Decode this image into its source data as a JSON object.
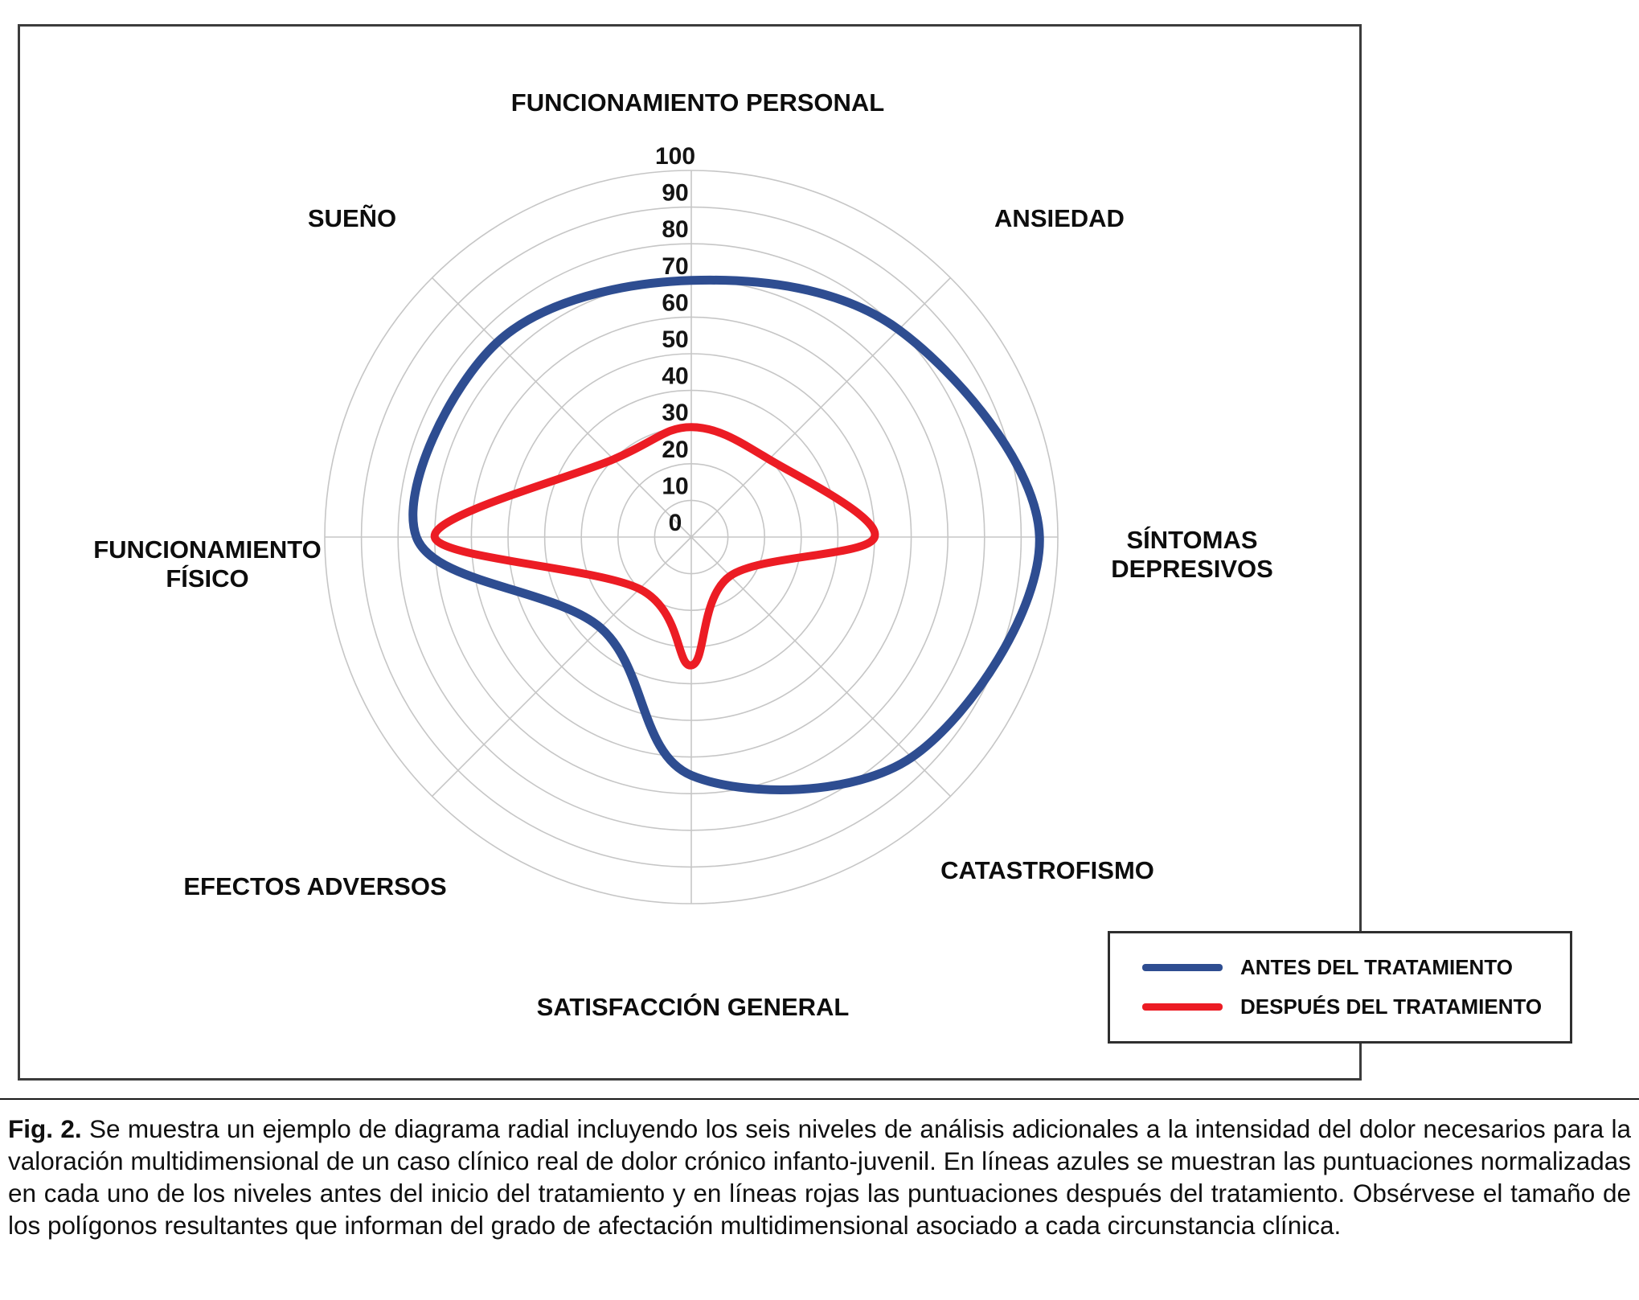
{
  "figure": {
    "caption_label": "Fig. 2.",
    "caption_text": "Se muestra un ejemplo de diagrama radial incluyendo los seis niveles de análisis adicionales a la intensidad del dolor necesarios para la valoración multidimensional de un caso clínico real de dolor crónico infanto-juvenil. En líneas azules se muestran las puntuaciones normalizadas en cada uno de los niveles antes del inicio del tratamiento y en líneas rojas las puntuaciones después del tratamiento. Obsérvese el tamaño de los polígonos resultantes que informan del grado de afectación multidimensional asociado a cada circunstancia clínica."
  },
  "legend": {
    "entries": [
      {
        "label": "ANTES DEL TRATAMIENTO",
        "color": "#2e4d91"
      },
      {
        "label": "DESPUÉS DEL TRATAMIENTO",
        "color": "#ec1c24"
      }
    ]
  },
  "chart_data": {
    "type": "radar",
    "axes": [
      "FUNCIONAMIENTO PERSONAL",
      "ANSIEDAD",
      "SÍNTOMAS DEPRESIVOS",
      "CATASTROFISMO",
      "SATISFACCIÓN GENERAL",
      "EFECTOS ADVERSOS",
      "FUNCIONAMIENTO FÍSICO",
      "SUEÑO"
    ],
    "series": [
      {
        "name": "ANTES DEL TRATAMIENTO",
        "color": "#2e4d91",
        "stroke_width": 11,
        "values": [
          70,
          80,
          95,
          85,
          65,
          35,
          75,
          75
        ]
      },
      {
        "name": "DESPUÉS DEL TRATAMIENTO",
        "color": "#ec1c24",
        "stroke_width": 10,
        "values": [
          30,
          30,
          50,
          15,
          35,
          20,
          70,
          30
        ]
      }
    ],
    "radial_ticks": [
      0,
      10,
      20,
      30,
      40,
      50,
      60,
      70,
      80,
      90,
      100
    ],
    "rlim": [
      0,
      100
    ],
    "grid": true,
    "grid_color": "#c6c6c6",
    "smooth": true,
    "legend_position": "bottom-right"
  }
}
